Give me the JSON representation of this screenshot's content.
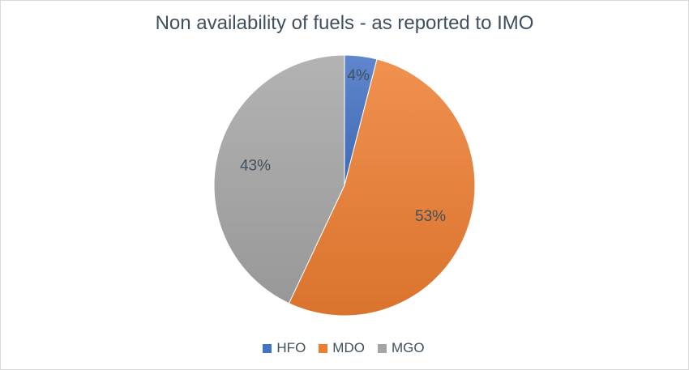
{
  "chart_data": {
    "type": "pie",
    "title": "Non availability of fuels - as reported to IMO",
    "categories": [
      "HFO",
      "MDO",
      "MGO"
    ],
    "values": [
      4,
      53,
      43
    ],
    "labels": [
      "4%",
      "53%",
      "43%"
    ],
    "colors": [
      "#4472c4",
      "#ed7d31",
      "#a5a5a5"
    ],
    "legend_position": "bottom"
  }
}
